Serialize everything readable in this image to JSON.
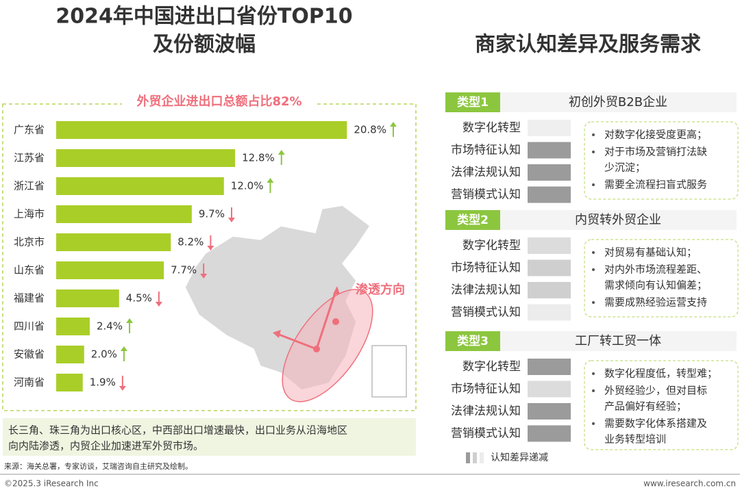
{
  "chart_data": {
    "type": "bar",
    "title": "2024年中国进出口省份TOP10",
    "subtitle": "及份额波幅",
    "annotation": "外贸企业进出口总额占比82%",
    "categories": [
      "广东省",
      "江苏省",
      "浙江省",
      "上海市",
      "北京市",
      "山东省",
      "福建省",
      "四川省",
      "安徽省",
      "河南省"
    ],
    "values": [
      20.8,
      12.8,
      12.0,
      9.7,
      8.2,
      7.7,
      4.5,
      2.4,
      2.0,
      1.9
    ],
    "value_labels": [
      "20.8%",
      "12.8%",
      "12.0%",
      "9.7%",
      "8.2%",
      "7.7%",
      "4.5%",
      "2.4%",
      "2.0%",
      "1.9%"
    ],
    "trends": [
      "up",
      "up",
      "up",
      "down",
      "down",
      "down",
      "down",
      "up",
      "up",
      "down"
    ],
    "color": "#a9ce28",
    "up_color": "#8cc63f",
    "down_color": "#ef6f7c"
  },
  "map": {
    "label": "渗透方向"
  },
  "note": [
    "长三角、珠三角为出口核心区，中西部出口增速最快，出口业务从沿海地区",
    "向内陆渗透，内贸企业加速进军外贸市场。"
  ],
  "source": "来源：海关总署，专家访谈，艾瑞咨询自主研究及绘制。",
  "footer": {
    "left": "©2025.3 iResearch Inc",
    "right": "www.iresearch.com.cn"
  },
  "panel": {
    "title": "商家认知差异及服务需求",
    "dimensions": [
      "数字化转型",
      "市场特征认知",
      "法律法规认知",
      "营销模式认知"
    ],
    "types": [
      {
        "tag": "类型1",
        "name": "初创外贸B2B企业",
        "shades": [
          "#efefef",
          "#9b9b9b",
          "#9b9b9b",
          "#9b9b9b"
        ],
        "bullets": [
          [
            "对数字化接受度更高；"
          ],
          [
            "对于市场及营销打法缺",
            "少沉淀；"
          ],
          [
            "需要全流程扫盲式服务"
          ]
        ]
      },
      {
        "tag": "类型2",
        "name": "内贸转外贸企业",
        "shades": [
          "#dcdcdc",
          "#cfcfcf",
          "#cfcfcf",
          "#ececec"
        ],
        "bullets": [
          [
            "对贸易有基础认知；"
          ],
          [
            "对内外市场流程差距、",
            "需求倾向有认知偏差；"
          ],
          [
            "需要成熟经验运营支持"
          ]
        ]
      },
      {
        "tag": "类型3",
        "name": "工厂转工贸一体",
        "shades": [
          "#9b9b9b",
          "#dcdcdc",
          "#9b9b9b",
          "#9b9b9b"
        ],
        "bullets": [
          [
            "数字化程度低，转型难；"
          ],
          [
            "外贸经验少，但对目标",
            "产品偏好有经验；"
          ],
          [
            "需要数字化体系搭建及",
            "业务转型培训"
          ]
        ]
      }
    ],
    "legend": "认知差异递减"
  }
}
